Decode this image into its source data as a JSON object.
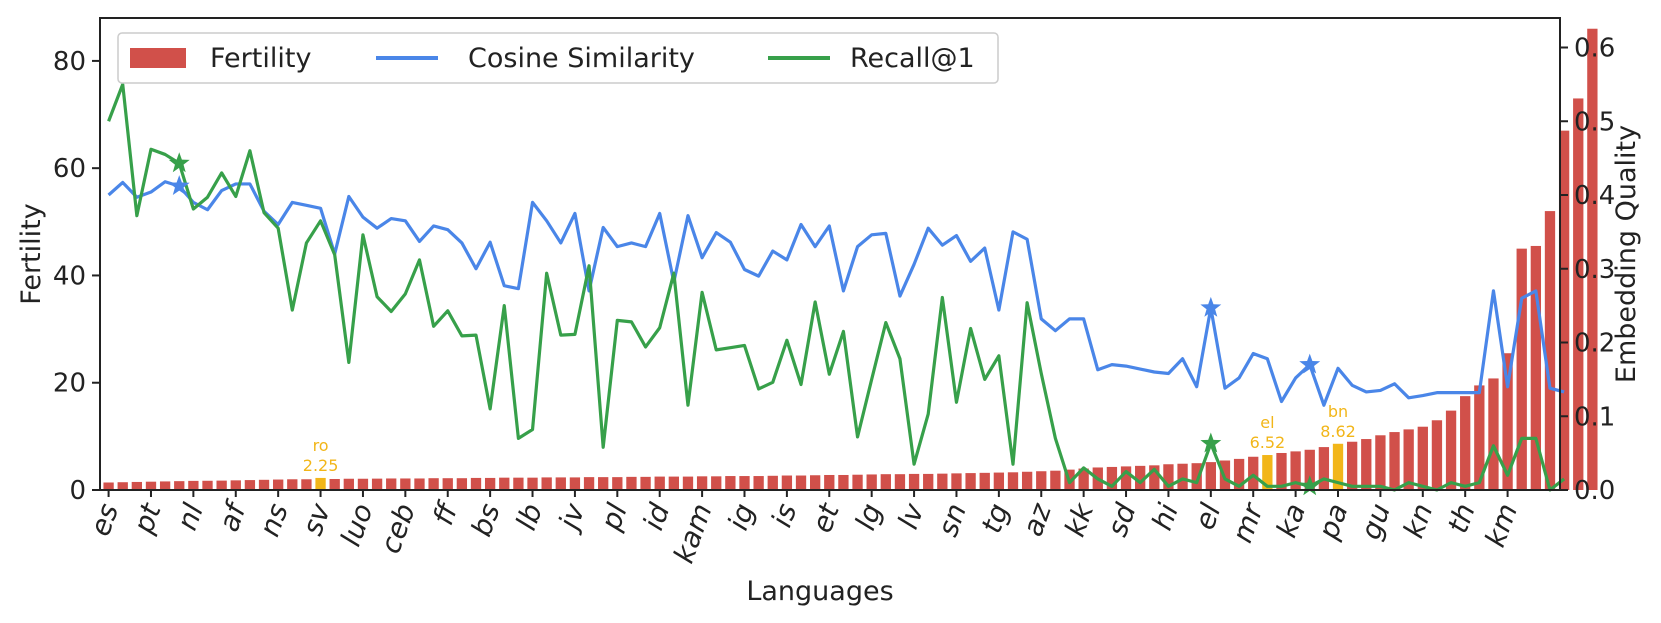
{
  "chart_data": {
    "type": "bar",
    "xlabel": "Languages",
    "ylabel": "Fertility",
    "ylabel_right": "Embedding Quality",
    "ylim": [
      0,
      88
    ],
    "ylim_right": [
      0,
      0.64
    ],
    "yticks": [
      0,
      20,
      40,
      60,
      80
    ],
    "yticks_right": [
      "0.0",
      "0.1",
      "0.2",
      "0.3",
      "0.4",
      "0.5",
      "0.6"
    ],
    "grid": false,
    "legend_position": "top-left",
    "tick_categories": [
      "es",
      "pt",
      "nl",
      "af",
      "ns",
      "sv",
      "luo",
      "ceb",
      "ff",
      "bs",
      "lb",
      "jv",
      "pl",
      "id",
      "kam",
      "ig",
      "is",
      "et",
      "lg",
      "lv",
      "sn",
      "tg",
      "az",
      "kk",
      "sd",
      "hi",
      "el",
      "mr",
      "ka",
      "pa",
      "gu",
      "kn",
      "th",
      "km"
    ],
    "num_categories": 102,
    "series": [
      {
        "name": "Fertility",
        "kind": "bar",
        "color": "#d1504a",
        "values": [
          1.4,
          1.45,
          1.5,
          1.55,
          1.6,
          1.65,
          1.7,
          1.72,
          1.75,
          1.8,
          1.85,
          1.9,
          1.95,
          2.0,
          2.0,
          2.25,
          2.05,
          2.1,
          2.1,
          2.12,
          2.15,
          2.15,
          2.15,
          2.2,
          2.2,
          2.2,
          2.25,
          2.25,
          2.3,
          2.3,
          2.3,
          2.35,
          2.35,
          2.35,
          2.4,
          2.4,
          2.4,
          2.45,
          2.45,
          2.5,
          2.5,
          2.5,
          2.55,
          2.55,
          2.6,
          2.6,
          2.6,
          2.65,
          2.7,
          2.7,
          2.75,
          2.8,
          2.8,
          2.85,
          2.9,
          2.95,
          2.95,
          3.0,
          3.0,
          3.05,
          3.1,
          3.15,
          3.2,
          3.25,
          3.3,
          3.4,
          3.5,
          3.6,
          3.8,
          4.0,
          4.2,
          4.3,
          4.4,
          4.5,
          4.6,
          4.8,
          4.9,
          5.0,
          5.2,
          5.5,
          5.8,
          6.2,
          6.52,
          6.9,
          7.2,
          7.5,
          8.0,
          8.62,
          9.0,
          9.5,
          10.2,
          10.8,
          11.3,
          11.8,
          13.0,
          14.8,
          17.5,
          19.5,
          20.8,
          25.5,
          45.0,
          45.5,
          52.0,
          67.0,
          73.0,
          86.0
        ]
      },
      {
        "name": "Cosine Similarity",
        "kind": "line",
        "color": "#4a86e8",
        "values": [
          0.4,
          0.417,
          0.397,
          0.404,
          0.418,
          0.412,
          0.39,
          0.38,
          0.406,
          0.415,
          0.415,
          0.378,
          0.36,
          0.39,
          0.386,
          0.382,
          0.32,
          0.398,
          0.37,
          0.355,
          0.368,
          0.365,
          0.337,
          0.358,
          0.353,
          0.335,
          0.3,
          0.336,
          0.277,
          0.273,
          0.39,
          0.365,
          0.335,
          0.375,
          0.27,
          0.356,
          0.33,
          0.335,
          0.33,
          0.375,
          0.282,
          0.372,
          0.315,
          0.349,
          0.336,
          0.299,
          0.29,
          0.324,
          0.312,
          0.36,
          0.33,
          0.358,
          0.27,
          0.33,
          0.346,
          0.348,
          0.263,
          0.306,
          0.355,
          0.332,
          0.345,
          0.31,
          0.328,
          0.244,
          0.35,
          0.34,
          0.232,
          0.216,
          0.232,
          0.232,
          0.163,
          0.17,
          0.168,
          0.164,
          0.16,
          0.158,
          0.178,
          0.14,
          0.247,
          0.138,
          0.152,
          0.185,
          0.178,
          0.12,
          0.152,
          0.17,
          0.115,
          0.165,
          0.142,
          0.133,
          0.135,
          0.144,
          0.125,
          0.128,
          0.132,
          0.132,
          0.132,
          0.132,
          0.27,
          0.14,
          0.26,
          0.27,
          0.138,
          0.133
        ],
        "markers": [
          5,
          78,
          85
        ]
      },
      {
        "name": "Recall@1",
        "kind": "line",
        "color": "#37a04a",
        "values": [
          0.5,
          0.55,
          0.372,
          0.462,
          0.455,
          0.443,
          0.381,
          0.397,
          0.43,
          0.398,
          0.46,
          0.376,
          0.355,
          0.244,
          0.335,
          0.365,
          0.319,
          0.173,
          0.346,
          0.262,
          0.242,
          0.266,
          0.312,
          0.222,
          0.243,
          0.209,
          0.21,
          0.11,
          0.25,
          0.07,
          0.082,
          0.294,
          0.21,
          0.211,
          0.304,
          0.058,
          0.23,
          0.228,
          0.194,
          0.22,
          0.294,
          0.115,
          0.268,
          0.19,
          0.193,
          0.196,
          0.137,
          0.146,
          0.203,
          0.143,
          0.255,
          0.157,
          0.215,
          0.072,
          0.15,
          0.227,
          0.178,
          0.035,
          0.103,
          0.261,
          0.119,
          0.219,
          0.15,
          0.182,
          0.035,
          0.254,
          0.158,
          0.07,
          0.01,
          0.03,
          0.015,
          0.005,
          0.025,
          0.01,
          0.028,
          0.005,
          0.015,
          0.01,
          0.063,
          0.015,
          0.005,
          0.02,
          0.005,
          0.005,
          0.01,
          0.005,
          0.015,
          0.01,
          0.005,
          0.005,
          0.005,
          0.0,
          0.01,
          0.005,
          0.0,
          0.01,
          0.005,
          0.01,
          0.06,
          0.02,
          0.07,
          0.07,
          0.0,
          0.015
        ],
        "markers": [
          5,
          78,
          85
        ]
      }
    ],
    "highlights": [
      {
        "index": 15,
        "label": "ro",
        "value_label": "2.25",
        "color": "#f2b619"
      },
      {
        "index": 82,
        "label": "el",
        "value_label": "6.52",
        "color": "#f2b619"
      },
      {
        "index": 87,
        "label": "bn",
        "value_label": "8.62",
        "color": "#f2b619"
      }
    ]
  }
}
